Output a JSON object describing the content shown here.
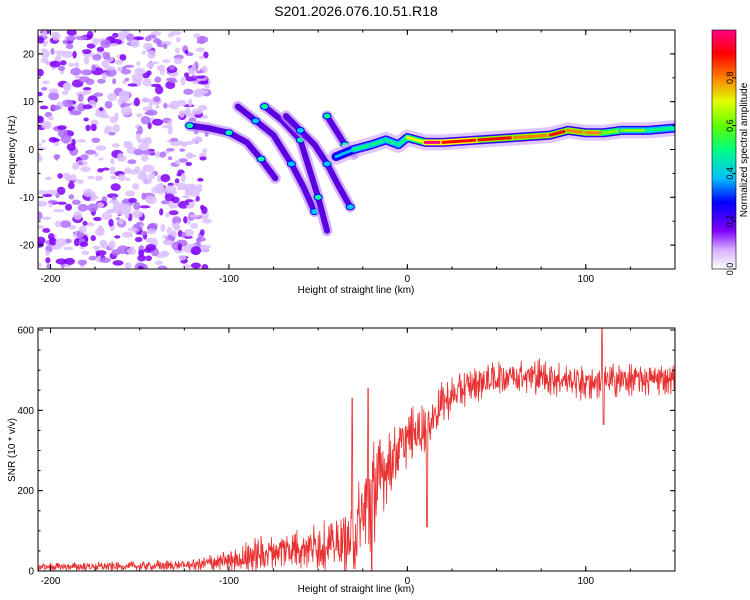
{
  "title": "S201.2026.076.10.51.R18",
  "chart_data": [
    {
      "type": "heatmap",
      "xlabel": "Height of straight line (km)",
      "ylabel": "Frequency (Hz)",
      "xlim": [
        -207,
        150
      ],
      "ylim": [
        -25,
        25
      ],
      "xticks": [
        -200,
        -100,
        0,
        100
      ],
      "xtick_labels": [
        "-200",
        "-100",
        "0",
        "100"
      ],
      "yticks": [
        -20,
        -10,
        0,
        10,
        20
      ],
      "ytick_labels": [
        "-20",
        "-10",
        "0",
        "10",
        "20"
      ],
      "colorbar": {
        "label": "Normalized spectral amplitude",
        "range": [
          0,
          1
        ],
        "ticks": [
          0.0,
          0.2,
          0.4,
          0.6,
          0.8
        ],
        "tick_labels": [
          "0.0",
          "0.2",
          "0.4",
          "0.6",
          "0.8"
        ],
        "colors": [
          "#ffffff",
          "#c080ff",
          "#8000ff",
          "#0000ff",
          "#00c0ff",
          "#00ff80",
          "#80ff00",
          "#ffff00",
          "#ff8000",
          "#ff0000",
          "#ff0080"
        ]
      },
      "features": {
        "noise_region_x": [
          -207,
          -120
        ],
        "branches": [
          {
            "x": [
              -122,
              -112,
              -100,
              -90,
              -82,
              -74
            ],
            "y": [
              5,
              4.5,
              3.5,
              1.5,
              -2,
              -6
            ]
          },
          {
            "x": [
              -95,
              -85,
              -75,
              -65,
              -58,
              -52
            ],
            "y": [
              9,
              6,
              3,
              -3,
              -8,
              -13
            ]
          },
          {
            "x": [
              -80,
              -70,
              -60,
              -55,
              -50,
              -45
            ],
            "y": [
              9,
              6,
              2,
              -4,
              -10,
              -17
            ]
          },
          {
            "x": [
              -68,
              -60,
              -52,
              -45,
              -38,
              -32
            ],
            "y": [
              7,
              4,
              1,
              -3,
              -8,
              -12
            ]
          },
          {
            "x": [
              -45,
              -40,
              -35,
              -30
            ],
            "y": [
              7,
              4,
              1,
              -1
            ]
          }
        ],
        "ridge": {
          "x": [
            -40,
            -30,
            -20,
            -12,
            -5,
            0,
            10,
            20,
            40,
            60,
            80,
            90,
            100,
            110,
            120,
            135,
            150
          ],
          "y": [
            -1.5,
            0,
            1,
            2,
            1,
            2.5,
            1.5,
            1.5,
            2,
            2.5,
            3,
            4,
            3.5,
            3.5,
            4,
            4,
            4.5
          ],
          "amp": [
            0.35,
            0.45,
            0.5,
            0.55,
            0.45,
            0.5,
            0.95,
            0.95,
            0.9,
            0.8,
            0.85,
            0.85,
            0.8,
            0.7,
            0.6,
            0.55,
            0.5
          ]
        }
      }
    },
    {
      "type": "line",
      "xlabel": "Height of straight line (km)",
      "ylabel": "SNR (10 * v/v)",
      "xlim": [
        -207,
        150
      ],
      "ylim": [
        0,
        605
      ],
      "xticks": [
        -200,
        -100,
        0,
        100
      ],
      "xtick_labels": [
        "-200",
        "-100",
        "0",
        "100"
      ],
      "yticks": [
        0,
        200,
        400,
        600
      ],
      "ytick_labels": [
        "0",
        "200",
        "400",
        "600"
      ],
      "color": "#e83030",
      "envelope": {
        "x": [
          -207,
          -150,
          -120,
          -100,
          -80,
          -60,
          -40,
          -30,
          -22,
          -15,
          -5,
          0,
          10,
          20,
          30,
          40,
          60,
          80,
          100,
          120,
          150
        ],
        "mean": [
          10,
          12,
          15,
          25,
          45,
          60,
          65,
          80,
          170,
          240,
          300,
          330,
          360,
          420,
          450,
          470,
          490,
          480,
          470,
          475,
          480
        ],
        "amp": [
          10,
          12,
          15,
          30,
          45,
          55,
          60,
          90,
          150,
          100,
          80,
          70,
          60,
          50,
          45,
          45,
          45,
          45,
          45,
          40,
          40
        ]
      },
      "spikes": [
        {
          "x": -31,
          "y": 430
        },
        {
          "x": -22,
          "y": 455
        },
        {
          "x": -20,
          "y": 0
        },
        {
          "x": 11,
          "y": 110
        },
        {
          "x": 109,
          "y": 605
        },
        {
          "x": 110,
          "y": 365
        }
      ]
    }
  ]
}
